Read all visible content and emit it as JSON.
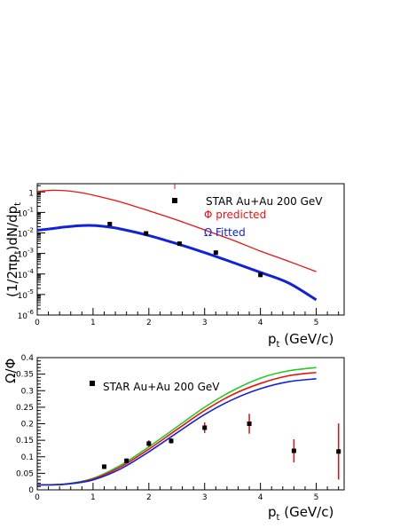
{
  "chart_data": [
    {
      "type": "line",
      "panel": "top",
      "xlabel_main": "p",
      "xlabel_sub": "t",
      "xlabel_unit": " (GeV/c)",
      "ylabel_parts": [
        "(1/2πp",
        "t",
        ")dN/dp",
        "t"
      ],
      "xlim": [
        0,
        5.5
      ],
      "ylim_log10": [
        -6,
        0.4
      ],
      "yscale": "log",
      "x_ticks": [
        0,
        1,
        2,
        3,
        4,
        5
      ],
      "y_ticks": [
        {
          "label": "10",
          "exp": "-6",
          "value": 1e-06
        },
        {
          "label": "10",
          "exp": "-5",
          "value": 1e-05
        },
        {
          "label": "10",
          "exp": "-4",
          "value": 0.0001
        },
        {
          "label": "10",
          "exp": "-3",
          "value": 0.001
        },
        {
          "label": "10",
          "exp": "-2",
          "value": 0.01
        },
        {
          "label": "10",
          "exp": "-1",
          "value": 0.1
        },
        {
          "label": "1",
          "exp": "",
          "value": 1
        }
      ],
      "legend": {
        "data_label": "STAR Au+Au 200 GeV",
        "phi_label": "Φ predicted",
        "omega_label": "Ω Fitted"
      },
      "series": [
        {
          "name": "Φ predicted",
          "color": "#ee1111",
          "x": [
            0,
            0.25,
            0.5,
            0.75,
            1,
            1.5,
            2,
            2.5,
            3,
            3.5,
            4,
            4.5,
            5
          ],
          "y": [
            1.05,
            1.2,
            1.15,
            0.95,
            0.7,
            0.32,
            0.12,
            0.043,
            0.014,
            0.0045,
            0.0013,
            0.00042,
            0.00013
          ]
        },
        {
          "name": "Ω Fitted",
          "color": "#1122dd",
          "x": [
            0,
            0.25,
            0.5,
            0.75,
            1,
            1.25,
            1.5,
            2,
            2.5,
            3,
            3.5,
            4,
            4.5,
            5
          ],
          "y": [
            0.0135,
            0.016,
            0.0195,
            0.0225,
            0.023,
            0.02,
            0.0155,
            0.0075,
            0.003,
            0.0011,
            0.00037,
            0.00012,
            3.7e-05,
            5.5e-06
          ]
        },
        {
          "name": "STAR Au+Au 200 GeV",
          "color": "#000000",
          "kind": "points",
          "x": [
            1.3,
            1.95,
            2.55,
            3.2,
            4.0
          ],
          "y": [
            0.027,
            0.0095,
            0.003,
            0.0011,
            9e-05
          ]
        }
      ]
    },
    {
      "type": "line",
      "panel": "bottom",
      "xlabel_main": "p",
      "xlabel_sub": "t",
      "xlabel_unit": " (GeV/c)",
      "ylabel": "Ω/Φ",
      "xlim": [
        0,
        5.5
      ],
      "ylim": [
        0,
        0.4
      ],
      "x_ticks": [
        0,
        1,
        2,
        3,
        4,
        5
      ],
      "y_ticks": [
        "0",
        "0.05",
        "0.1",
        "0.15",
        "0.2",
        "0.25",
        "0.3",
        "0.35",
        "0.4"
      ],
      "legend": {
        "data_label": "STAR Au+Au 200 GeV"
      },
      "series": [
        {
          "name": "green",
          "color": "#22cc22",
          "x": [
            0,
            0.5,
            1,
            1.5,
            2,
            2.5,
            3,
            3.5,
            4,
            4.5,
            5
          ],
          "y": [
            0.015,
            0.018,
            0.035,
            0.075,
            0.13,
            0.19,
            0.25,
            0.3,
            0.338,
            0.36,
            0.37
          ]
        },
        {
          "name": "red",
          "color": "#ee1111",
          "x": [
            0,
            0.5,
            1,
            1.5,
            2,
            2.5,
            3,
            3.5,
            4,
            4.5,
            5
          ],
          "y": [
            0.015,
            0.017,
            0.033,
            0.07,
            0.123,
            0.182,
            0.24,
            0.288,
            0.322,
            0.345,
            0.355
          ]
        },
        {
          "name": "blue",
          "color": "#1122dd",
          "x": [
            0,
            0.5,
            1,
            1.5,
            2,
            2.5,
            3,
            3.5,
            4,
            4.5,
            5
          ],
          "y": [
            0.015,
            0.017,
            0.03,
            0.064,
            0.115,
            0.172,
            0.228,
            0.273,
            0.306,
            0.327,
            0.336
          ]
        },
        {
          "name": "STAR Au+Au 200 GeV",
          "kind": "points",
          "color": "#000000",
          "errcolor": "#dd1111",
          "x": [
            1.2,
            1.6,
            2.0,
            2.4,
            3.0,
            3.8,
            4.6,
            5.4
          ],
          "y": [
            0.07,
            0.088,
            0.14,
            0.148,
            0.188,
            0.2,
            0.118,
            0.116
          ],
          "err": [
            0.007,
            0.007,
            0.01,
            0.008,
            0.016,
            0.03,
            0.035,
            0.085
          ]
        }
      ]
    }
  ]
}
